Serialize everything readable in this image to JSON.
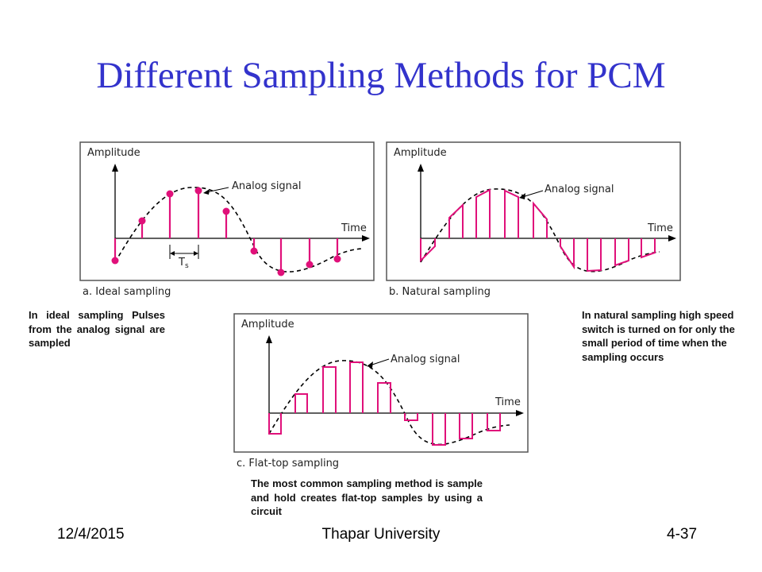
{
  "slide": {
    "title": "Different Sampling Methods for PCM"
  },
  "figures": {
    "ideal": {
      "amplitude_label": "Amplitude",
      "time_label": "Time",
      "analog_label": "Analog signal",
      "ts_label": "T",
      "ts_sub": "s",
      "caption": "a. Ideal sampling"
    },
    "natural": {
      "amplitude_label": "Amplitude",
      "time_label": "Time",
      "analog_label": "Analog signal",
      "caption": "b. Natural sampling"
    },
    "flattop": {
      "amplitude_label": "Amplitude",
      "time_label": "Time",
      "analog_label": "Analog signal",
      "caption": "c. Flat-top sampling"
    }
  },
  "notes": {
    "ideal": "In ideal sampling Pulses from the analog signal are sampled",
    "natural": "In natural sampling high speed switch is turned on for only the small period of time when the sampling occurs",
    "flattop": "The most common sampling method is sample and hold creates flat-top samples by using a circuit"
  },
  "footer": {
    "date": "12/4/2015",
    "institution": "Thapar University",
    "slide_number": "4-37"
  },
  "colors": {
    "title": "#3333cc",
    "sample": "#e0107a",
    "frame": "#555555"
  }
}
